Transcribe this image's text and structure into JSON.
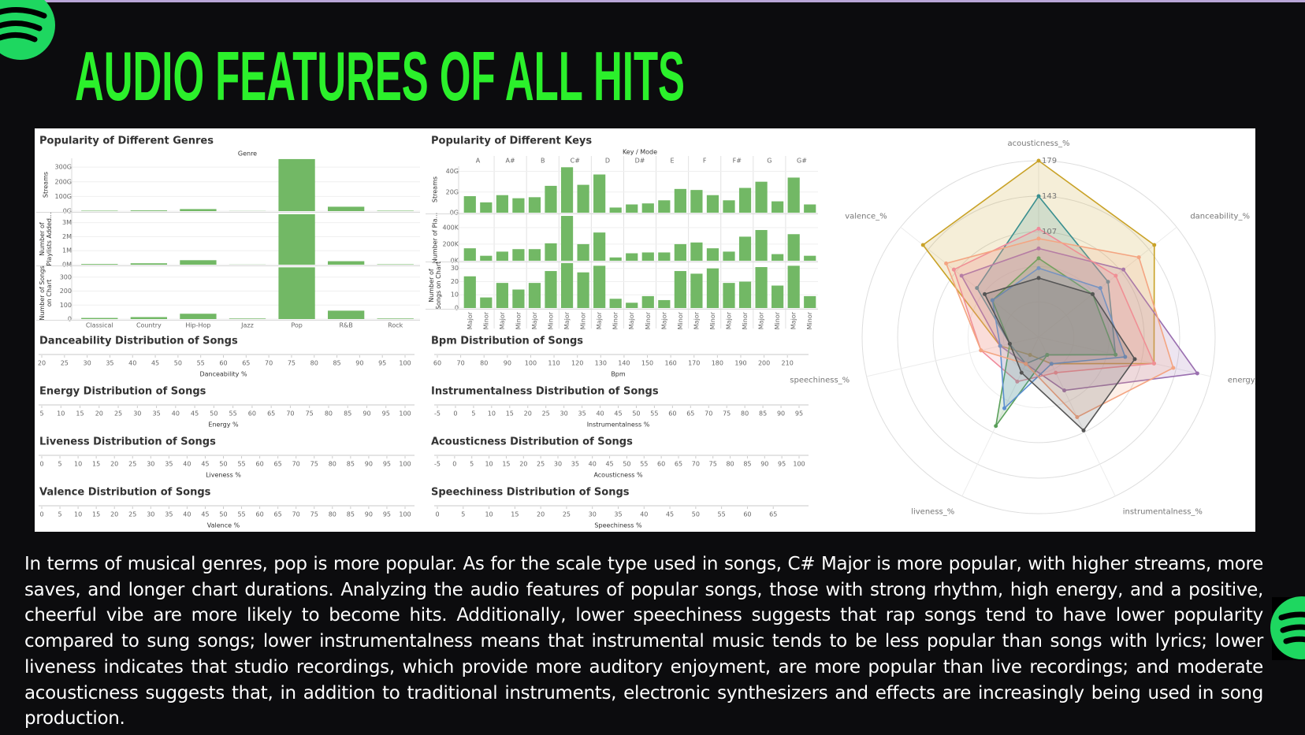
{
  "title": "AUDIO FEATURES OF ALL HITS",
  "paragraph": "In terms of musical genres, pop is more popular. As for the scale type used in songs, C# Major is more popular, with higher streams, more saves, and longer chart durations. Analyzing the audio features of popular songs, those with strong rhythm, high energy, and a positive, cheerful vibe are more likely to become hits. Additionally, lower speechiness suggests that rap songs tend to have lower popularity compared to sung songs; lower instrumentalness means that instrumental music tends to be less popular than songs with lyrics; lower liveness indicates that studio recordings, which provide more auditory enjoyment, are more popular than live recordings; and moderate acousticness suggests that, in addition to traditional instruments, electronic synthesizers and effects are increasingly being used in song production.",
  "chart_data": [
    {
      "type": "bar",
      "title": "Popularity of Different Genres",
      "x_label": "Genre",
      "color": "#72b865",
      "categories": [
        "Classical",
        "Country",
        "Hip-Hop",
        "Jazz",
        "Pop",
        "R&B",
        "Rock"
      ],
      "panels": [
        {
          "y_label": [
            "Streams"
          ],
          "values": [
            3,
            5,
            14,
            1,
            355,
            30,
            3
          ],
          "ylim": [
            0,
            360
          ],
          "yticks": [
            {
              "value": 0,
              "label": "0G"
            },
            {
              "value": 100,
              "label": "100G"
            },
            {
              "value": 200,
              "label": "200G"
            },
            {
              "value": 300,
              "label": "300G"
            }
          ]
        },
        {
          "y_label": [
            "Number of",
            "Playlists Added..."
          ],
          "values": [
            0.05,
            0.1,
            0.32,
            0.01,
            3.6,
            0.25,
            0.03
          ],
          "ylim": [
            0,
            3.65
          ],
          "yticks": [
            {
              "value": 0,
              "label": "0M"
            },
            {
              "value": 1,
              "label": "1M"
            },
            {
              "value": 2,
              "label": "2M"
            },
            {
              "value": 3,
              "label": "3M"
            }
          ]
        },
        {
          "y_label": [
            "Number of Songs",
            "on Chart"
          ],
          "values": [
            8,
            14,
            38,
            4,
            370,
            60,
            4
          ],
          "ylim": [
            0,
            372
          ],
          "yticks": [
            0,
            100,
            200,
            300
          ]
        }
      ]
    },
    {
      "type": "bar",
      "title": "Popularity of Different Keys",
      "x_label": "Key / Mode",
      "color": "#72b865",
      "groups": [
        "A",
        "A#",
        "B",
        "C#",
        "D",
        "D#",
        "E",
        "F",
        "F#",
        "G",
        "G#"
      ],
      "categories": [
        "Major",
        "Minor",
        "Major",
        "Minor",
        "Major",
        "Minor",
        "Major",
        "Minor",
        "Major",
        "Minor",
        "Major",
        "Minor",
        "Major",
        "Minor",
        "Major",
        "Minor",
        "Major",
        "Minor",
        "Major",
        "Minor",
        "Major",
        "Minor"
      ],
      "panels": [
        {
          "y_label": [
            "Streams"
          ],
          "values": [
            16,
            10,
            17,
            14,
            15,
            26,
            44,
            27,
            37,
            5,
            8,
            9,
            12,
            23,
            22,
            17,
            12,
            24,
            30,
            11,
            34,
            8
          ],
          "ylim": [
            0,
            45
          ],
          "yticks": [
            {
              "value": 0,
              "label": "0G"
            },
            {
              "value": 20,
              "label": "20G"
            },
            {
              "value": 40,
              "label": "40G"
            }
          ]
        },
        {
          "y_label": [
            "Number of Pla..."
          ],
          "values": [
            150,
            60,
            110,
            140,
            140,
            210,
            540,
            200,
            340,
            40,
            90,
            100,
            100,
            200,
            220,
            150,
            110,
            290,
            370,
            80,
            320,
            60
          ],
          "ylim": [
            0,
            550
          ],
          "yticks": [
            {
              "value": 0,
              "label": "0K"
            },
            {
              "value": 200,
              "label": "200K"
            },
            {
              "value": 400,
              "label": "400K"
            }
          ]
        },
        {
          "y_label": [
            "Number of",
            "Songs on Chart"
          ],
          "values": [
            24,
            8,
            19,
            14,
            19,
            28,
            34,
            27,
            32,
            7,
            4,
            9,
            6,
            28,
            26,
            30,
            19,
            20,
            31,
            17,
            32,
            9
          ],
          "ylim": [
            0,
            34
          ],
          "yticks": [
            0,
            10,
            20,
            30
          ]
        }
      ]
    },
    {
      "type": "histogram",
      "title": "Danceability Distribution of Songs",
      "x_label": "Danceability %",
      "xlim": [
        20,
        100
      ],
      "xticks": [
        20,
        25,
        30,
        35,
        40,
        45,
        50,
        55,
        60,
        65,
        70,
        75,
        80,
        85,
        90,
        95,
        100
      ]
    },
    {
      "type": "histogram",
      "title": "Bpm Distribution of Songs",
      "x_label": "Bpm",
      "xlim": [
        60,
        215
      ],
      "xticks": [
        60,
        70,
        80,
        90,
        100,
        110,
        120,
        130,
        140,
        150,
        160,
        170,
        180,
        190,
        200,
        210
      ]
    },
    {
      "type": "histogram",
      "title": "Energy Distribution of Songs",
      "x_label": "Energy %",
      "xlim": [
        5,
        100
      ],
      "xticks": [
        5,
        10,
        15,
        20,
        25,
        30,
        35,
        40,
        45,
        50,
        55,
        60,
        65,
        70,
        75,
        80,
        85,
        90,
        95,
        100
      ]
    },
    {
      "type": "histogram",
      "title": "Instrumentalness Distribution of Songs",
      "x_label": "Instrumentalness %",
      "xlim": [
        -5,
        95
      ],
      "xticks": [
        -5,
        0,
        5,
        10,
        15,
        20,
        25,
        30,
        35,
        40,
        45,
        50,
        55,
        60,
        65,
        70,
        75,
        80,
        85,
        90,
        95
      ]
    },
    {
      "type": "histogram",
      "title": "Liveness Distribution of Songs",
      "x_label": "Liveness %",
      "xlim": [
        0,
        100
      ],
      "xticks": [
        0,
        5,
        10,
        15,
        20,
        25,
        30,
        35,
        40,
        45,
        50,
        55,
        60,
        65,
        70,
        75,
        80,
        85,
        90,
        95,
        100
      ]
    },
    {
      "type": "histogram",
      "title": "Acousticness Distribution of Songs",
      "x_label": "Acousticness %",
      "xlim": [
        -5,
        100
      ],
      "xticks": [
        -5,
        0,
        5,
        10,
        15,
        20,
        25,
        30,
        35,
        40,
        45,
        50,
        55,
        60,
        65,
        70,
        75,
        80,
        85,
        90,
        95,
        100
      ]
    },
    {
      "type": "histogram",
      "title": "Valence Distribution of Songs",
      "x_label": "Valence %",
      "xlim": [
        0,
        100
      ],
      "xticks": [
        0,
        5,
        10,
        15,
        20,
        25,
        30,
        35,
        40,
        45,
        50,
        55,
        60,
        65,
        70,
        75,
        80,
        85,
        90,
        95,
        100
      ]
    },
    {
      "type": "histogram",
      "title": "Speechiness Distribution of Songs",
      "x_label": "Speechiness %",
      "xlim": [
        0,
        70
      ],
      "xticks": [
        0,
        5,
        10,
        15,
        20,
        25,
        30,
        35,
        40,
        45,
        50,
        55,
        60,
        65
      ]
    },
    {
      "type": "radar",
      "axes": [
        "acousticness_%",
        "danceability_%",
        "energy_%",
        "instrumentalness_%",
        "liveness_%",
        "speechiness_%",
        "valence_%"
      ],
      "rlim": [
        0,
        179
      ],
      "rticks": [
        107,
        143,
        179
      ],
      "series": [
        {
          "color": "#c9a227",
          "values": [
            179,
            150,
            120,
            30,
            20,
            40,
            150
          ]
        },
        {
          "color": "#3a8f8f",
          "values": [
            143,
            90,
            80,
            20,
            30,
            30,
            80
          ]
        },
        {
          "color": "#9a6fb0",
          "values": [
            90,
            110,
            165,
            60,
            30,
            40,
            100
          ]
        },
        {
          "color": "#f08a9a",
          "values": [
            110,
            100,
            120,
            40,
            50,
            60,
            110
          ]
        },
        {
          "color": "#5aa05a",
          "values": [
            80,
            70,
            80,
            20,
            100,
            30,
            60
          ]
        },
        {
          "color": "#5b8fd0",
          "values": [
            70,
            80,
            90,
            30,
            80,
            40,
            60
          ]
        },
        {
          "color": "#f4a582",
          "values": [
            100,
            130,
            140,
            90,
            30,
            60,
            120
          ]
        },
        {
          "color": "#555555",
          "values": [
            60,
            70,
            100,
            105,
            40,
            30,
            70
          ]
        }
      ]
    }
  ]
}
